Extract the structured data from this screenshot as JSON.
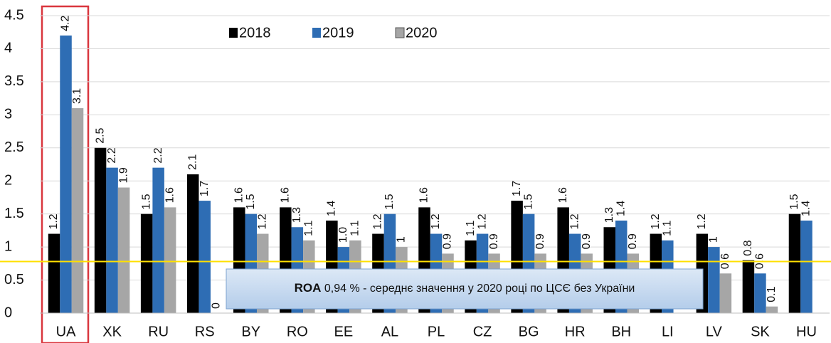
{
  "chart_data": {
    "type": "bar",
    "categories": [
      "UA",
      "XK",
      "RU",
      "RS",
      "BY",
      "RO",
      "EE",
      "AL",
      "PL",
      "CZ",
      "BG",
      "HR",
      "BH",
      "LI",
      "LV",
      "SK",
      "HU"
    ],
    "series": [
      {
        "name": "2018",
        "color": "#000000",
        "values": [
          1.2,
          2.5,
          1.5,
          2.1,
          1.6,
          1.6,
          1.4,
          1.2,
          1.6,
          1.1,
          1.7,
          1.6,
          1.3,
          1.2,
          1.2,
          0.8,
          1.5
        ]
      },
      {
        "name": "2019",
        "color": "#2e6db4",
        "values": [
          4.2,
          2.2,
          2.2,
          1.7,
          1.5,
          1.3,
          1.0,
          1.5,
          1.2,
          1.2,
          1.5,
          1.2,
          1.4,
          1.1,
          1,
          0.6,
          1.4
        ],
        "value_labels": [
          "4.2",
          "2.2",
          "2.2",
          "1.7",
          "1.5",
          "1.3",
          "1.0",
          "1.5",
          "1.2",
          "1.2",
          "1.5",
          "1.2",
          "1.4",
          "1.1",
          "1",
          "0.6",
          "1.4"
        ]
      },
      {
        "name": "2020",
        "color": "#a6a6a6",
        "values": [
          3.1,
          1.9,
          1.6,
          0,
          1.2,
          1.1,
          1.1,
          1,
          0.9,
          0.9,
          0.9,
          0.9,
          0.9,
          null,
          0.6,
          0.1,
          null
        ]
      }
    ],
    "ylim": [
      0,
      4.5
    ],
    "yticks": [
      0,
      0.5,
      1,
      1.5,
      2,
      2.5,
      3,
      3.5,
      4,
      4.5
    ],
    "grid": true,
    "legend": "top",
    "reference_line": {
      "value": 0.78,
      "color": "#ffe000"
    },
    "annotation": {
      "bold": "ROA",
      "text": " 0,94 % - середнє значення у 2020 році по ЦСЄ без України"
    }
  }
}
